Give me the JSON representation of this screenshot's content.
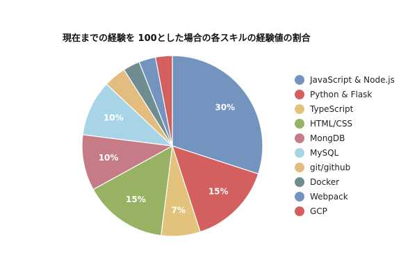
{
  "chart_data": {
    "type": "pie",
    "title": "現在までの経験を 100とした場合の各スキルの経験値の割合",
    "legend_position": "right",
    "start_angle_deg": 0,
    "direction": "clockwise",
    "slices": [
      {
        "label": "JavaScript & Node.js",
        "value": 30,
        "display": "30%",
        "color": "#7294bf"
      },
      {
        "label": "Python & Flask",
        "value": 15,
        "display": "15%",
        "color": "#d45f5f"
      },
      {
        "label": "TypeScript",
        "value": 7,
        "display": "7%",
        "color": "#e3c37b"
      },
      {
        "label": "HTML/CSS",
        "value": 15,
        "display": "15%",
        "color": "#98b263"
      },
      {
        "label": "MongDB",
        "value": 10,
        "display": "10%",
        "color": "#c67b86"
      },
      {
        "label": "MySQL",
        "value": 10,
        "display": "10%",
        "color": "#a8d4e8"
      },
      {
        "label": "git/github",
        "value": 4,
        "display": "",
        "color": "#e3bd7f"
      },
      {
        "label": "Docker",
        "value": 3,
        "display": "",
        "color": "#6f8d91"
      },
      {
        "label": "Webpack",
        "value": 3,
        "display": "",
        "color": "#7294bf"
      },
      {
        "label": "GCP",
        "value": 3,
        "display": "",
        "color": "#d45f5f"
      }
    ]
  }
}
